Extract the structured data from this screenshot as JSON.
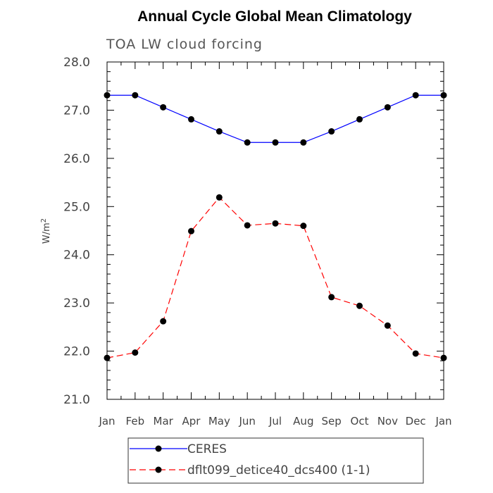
{
  "chart_data": {
    "type": "line",
    "title": "Annual Cycle Global Mean Climatology",
    "subtitle": "TOA LW cloud forcing",
    "ylabel": "W/m",
    "ylabel_sup": "2",
    "xlabel": "",
    "ylim": [
      21.0,
      28.0
    ],
    "yticks": [
      "21.0",
      "22.0",
      "23.0",
      "24.0",
      "25.0",
      "26.0",
      "27.0",
      "28.0"
    ],
    "categories": [
      "Jan",
      "Feb",
      "Mar",
      "Apr",
      "May",
      "Jun",
      "Jul",
      "Aug",
      "Sep",
      "Oct",
      "Nov",
      "Dec",
      "Jan"
    ],
    "series": [
      {
        "name": "CERES",
        "color": "#0000ff",
        "style": "solid",
        "values": [
          27.31,
          27.31,
          27.06,
          26.81,
          26.56,
          26.33,
          26.33,
          26.33,
          26.56,
          26.81,
          27.06,
          27.31,
          27.31
        ]
      },
      {
        "name": "dflt099_detice40_dcs400 (1-1)",
        "color": "#ff0000",
        "style": "dashed",
        "values": [
          21.86,
          21.97,
          22.62,
          24.49,
          25.19,
          24.61,
          24.65,
          24.6,
          23.12,
          22.94,
          22.53,
          21.95,
          21.86
        ]
      }
    ],
    "legend_position": "bottom-center"
  }
}
